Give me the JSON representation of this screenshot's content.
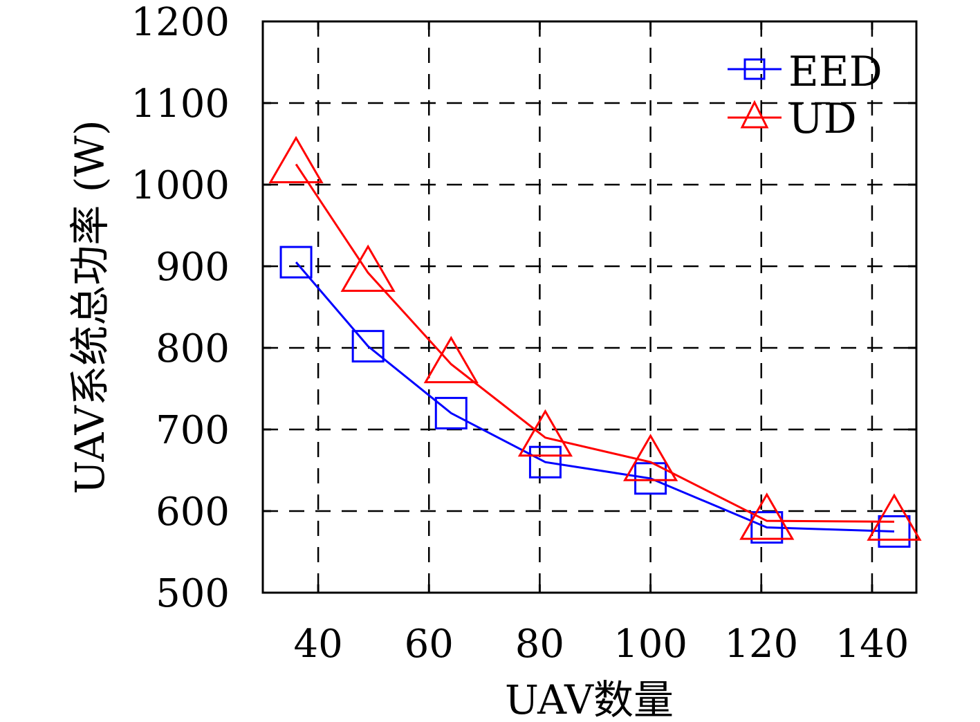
{
  "chart_data": {
    "type": "line",
    "xlabel": "UAV数量",
    "ylabel": "UAV系统总功率 (W)",
    "xlim": [
      30,
      148
    ],
    "ylim": [
      500,
      1200
    ],
    "xticks": [
      40,
      60,
      80,
      100,
      120,
      140
    ],
    "yticks": [
      500,
      600,
      700,
      800,
      900,
      1000,
      1100,
      1200
    ],
    "grid": true,
    "legend_position": "top-right",
    "series": [
      {
        "name": "EED",
        "color": "#0000ff",
        "marker": "square",
        "x": [
          36,
          49,
          64,
          81,
          100,
          121,
          144
        ],
        "y": [
          905,
          802,
          720,
          660,
          640,
          580,
          575
        ]
      },
      {
        "name": "UD",
        "color": "#ff0000",
        "marker": "triangle",
        "x": [
          36,
          49,
          64,
          81,
          100,
          121,
          144
        ],
        "y": [
          1025,
          892,
          780,
          690,
          660,
          588,
          587
        ]
      }
    ]
  }
}
